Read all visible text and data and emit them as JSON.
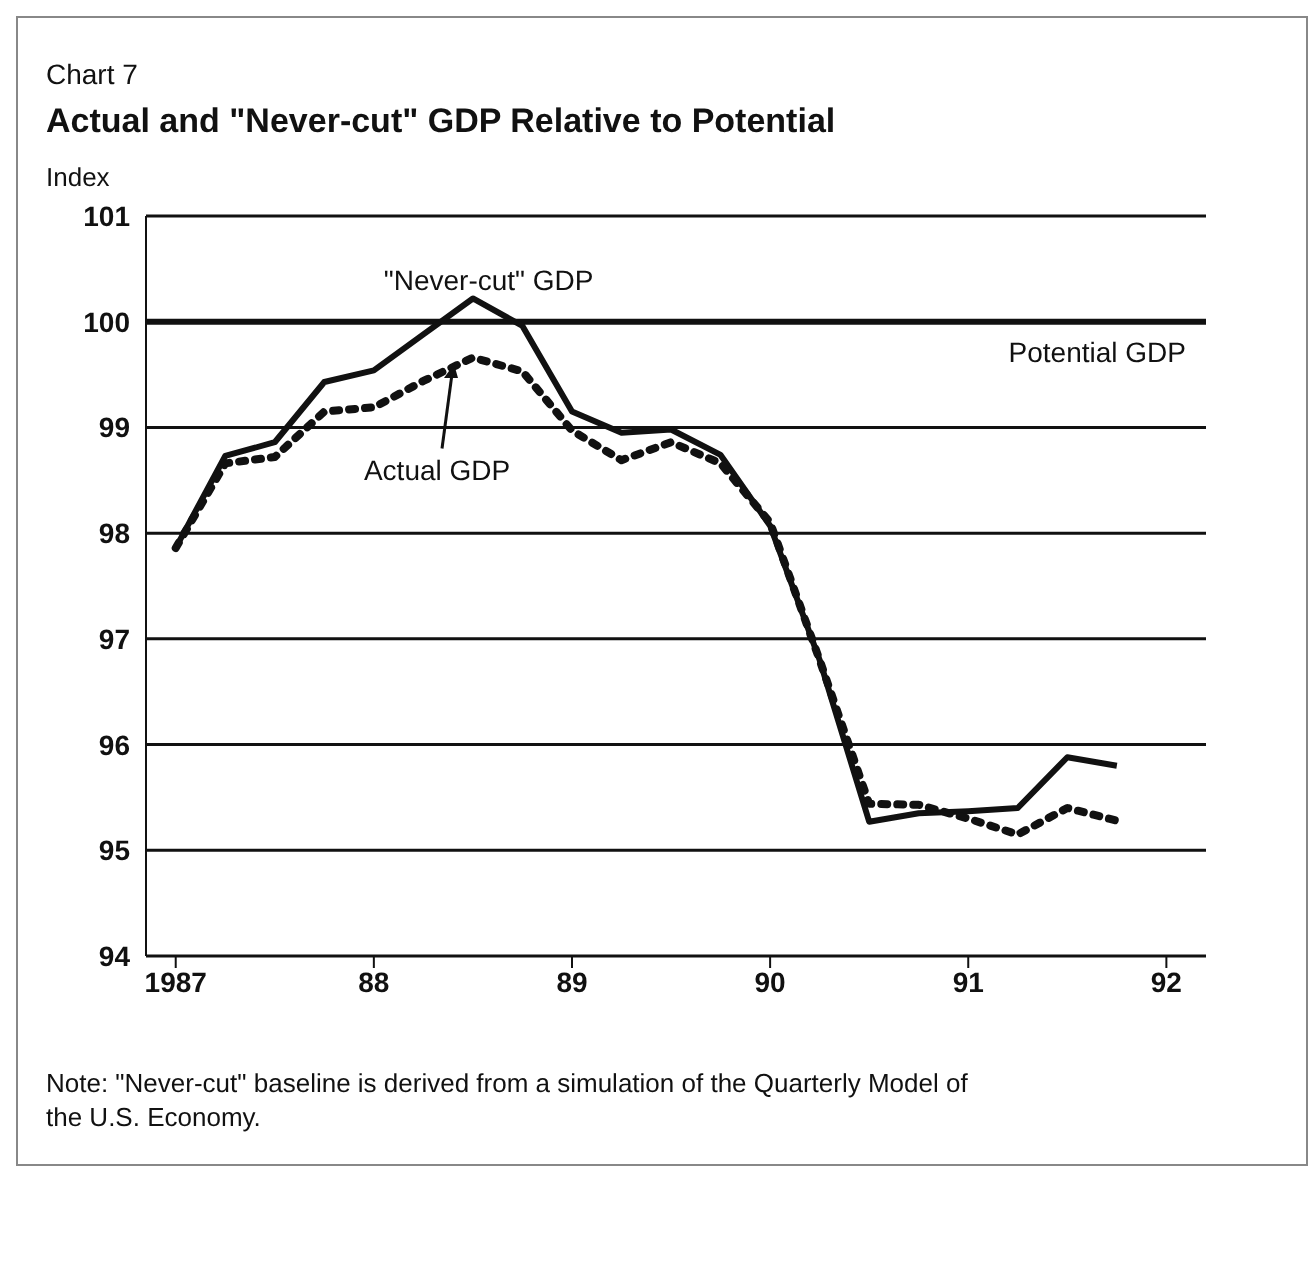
{
  "chart_data": {
    "type": "line",
    "title": "Chart 7",
    "subtitle": "Actual and \"Never-cut\" GDP Relative to Potential",
    "ylabel": "Index",
    "x": [
      1987,
      1987.25,
      1987.5,
      1987.75,
      1988,
      1988.25,
      1988.5,
      1988.75,
      1989,
      1989.25,
      1989.5,
      1989.75,
      1990,
      1990.25,
      1990.5,
      1990.75,
      1991,
      1991.25,
      1991.5,
      1991.75
    ],
    "series": [
      {
        "name": "\"Never-cut\" GDP",
        "color": "#111111",
        "line_style": "solid",
        "values": [
          97.86,
          98.73,
          98.86,
          99.43,
          99.54,
          99.88,
          100.22,
          99.96,
          99.15,
          98.95,
          98.98,
          98.74,
          98.07,
          96.8,
          95.27,
          95.35,
          95.37,
          95.4,
          95.88,
          95.8
        ]
      },
      {
        "name": "Actual GDP",
        "color": "#111111",
        "line_style": "dotted",
        "values": [
          97.86,
          98.66,
          98.72,
          99.15,
          99.19,
          99.44,
          99.66,
          99.53,
          98.97,
          98.69,
          98.86,
          98.66,
          98.1,
          96.8,
          95.44,
          95.43,
          95.3,
          95.15,
          95.4,
          95.28
        ]
      }
    ],
    "xlim": [
      1986.85,
      1992.2
    ],
    "xticks": [
      {
        "value": 1987,
        "label": "1987"
      },
      {
        "value": 1988,
        "label": "88"
      },
      {
        "value": 1989,
        "label": "89"
      },
      {
        "value": 1990,
        "label": "90"
      },
      {
        "value": 1991,
        "label": "91"
      },
      {
        "value": 1992,
        "label": "92"
      }
    ],
    "ylim": [
      94,
      101
    ],
    "yticks": [
      94,
      95,
      96,
      97,
      98,
      99,
      100,
      101
    ],
    "grid": "y",
    "legend": false,
    "marker": "none",
    "ref_lines": [
      {
        "axis": "y",
        "value": 100,
        "label": "Potential GDP",
        "color": "#111111"
      }
    ],
    "annotations": [
      "Note:  \"Never-cut\" baseline is derived from a simulation of the Quarterly Model of the U.S. Economy."
    ]
  }
}
